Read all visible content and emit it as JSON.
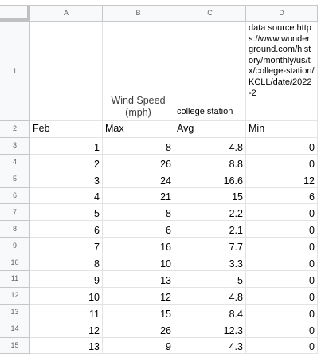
{
  "columns": [
    "A",
    "B",
    "C",
    "D"
  ],
  "row_numbers": [
    "1",
    "2",
    "3",
    "4",
    "5",
    "6",
    "7",
    "8",
    "9",
    "10",
    "11",
    "12",
    "13",
    "14",
    "15"
  ],
  "row1": {
    "a": "",
    "b": "Wind Speed (mph)",
    "c": "college station",
    "d": "data source:https://www.wunderground.com/history/monthly/us/tx/college-station/KCLL/date/2022-2"
  },
  "row2": {
    "a": "Feb",
    "b": "Max",
    "c": "Avg",
    "d": "Min"
  },
  "rows": [
    [
      "1",
      "8",
      "4.8",
      "0"
    ],
    [
      "2",
      "26",
      "8.8",
      "0"
    ],
    [
      "3",
      "24",
      "16.6",
      "12"
    ],
    [
      "4",
      "21",
      "15",
      "6"
    ],
    [
      "5",
      "8",
      "2.2",
      "0"
    ],
    [
      "6",
      "6",
      "2.1",
      "0"
    ],
    [
      "7",
      "16",
      "7.7",
      "0"
    ],
    [
      "8",
      "10",
      "3.3",
      "0"
    ],
    [
      "9",
      "13",
      "5",
      "0"
    ],
    [
      "10",
      "12",
      "4.8",
      "0"
    ],
    [
      "11",
      "15",
      "8.4",
      "0"
    ],
    [
      "12",
      "26",
      "12.3",
      "0"
    ],
    [
      "13",
      "9",
      "4.3",
      "0"
    ]
  ]
}
